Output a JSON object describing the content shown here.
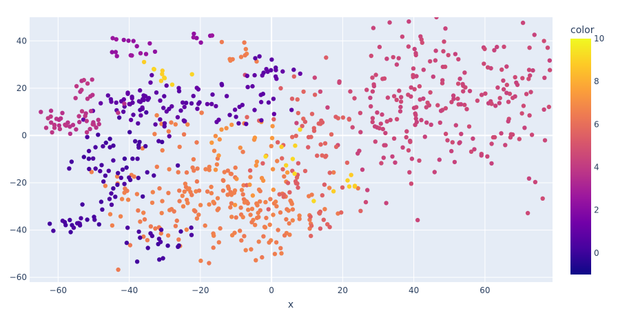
{
  "chart_data": {
    "type": "scatter",
    "title": "",
    "xlabel": "x",
    "ylabel": "",
    "xlim": [
      -68,
      79
    ],
    "ylim": [
      -62,
      50
    ],
    "x_ticks": [
      -60,
      -40,
      -20,
      0,
      20,
      40,
      60
    ],
    "y_ticks": [
      -60,
      -40,
      -20,
      0,
      20,
      40
    ],
    "x_tick_labels": [
      "−60",
      "−40",
      "−20",
      "0",
      "20",
      "40",
      "60"
    ],
    "y_tick_labels": [
      "−60",
      "−40",
      "−20",
      "0",
      "20",
      "40"
    ],
    "grid": true,
    "plot_bgcolor": "#e5ecf6",
    "colorbar": {
      "title": "color",
      "range": [
        -1,
        10
      ],
      "ticks": [
        0,
        2,
        4,
        6,
        8,
        10
      ],
      "colorscale": [
        "#0d0887",
        "#46039f",
        "#7201a8",
        "#9c179e",
        "#bd3786",
        "#d8576b",
        "#ed7953",
        "#fb9f3a",
        "#fdca26",
        "#f0f921"
      ]
    },
    "clusters": [
      {
        "color_value": 4.5,
        "cx": 52,
        "cy": 18,
        "rx": 17,
        "ry": 18,
        "n": 230
      },
      {
        "color_value": 4.5,
        "cx": 30,
        "cy": 3,
        "rx": 6,
        "ry": 13,
        "n": 25
      },
      {
        "color_value": 6.5,
        "cx": -18,
        "cy": -27,
        "rx": 14,
        "ry": 11,
        "n": 160
      },
      {
        "color_value": 6.5,
        "cx": 1,
        "cy": -35,
        "rx": 6,
        "ry": 8,
        "n": 45
      },
      {
        "color_value": 6.5,
        "cx": -25,
        "cy": 0,
        "rx": 6,
        "ry": 5,
        "n": 15
      },
      {
        "color_value": 6.5,
        "cx": -8,
        "cy": 34,
        "rx": 3,
        "ry": 3,
        "n": 10
      },
      {
        "color_value": 5.5,
        "cx": 8,
        "cy": -10,
        "rx": 8,
        "ry": 14,
        "n": 45
      },
      {
        "color_value": 5.5,
        "cx": 14,
        "cy": 10,
        "rx": 5,
        "ry": 12,
        "n": 20
      },
      {
        "color_value": 5.5,
        "cx": 15,
        "cy": -37,
        "rx": 3,
        "ry": 3,
        "n": 12
      },
      {
        "color_value": 7.2,
        "cx": -6,
        "cy": -8,
        "rx": 6,
        "ry": 12,
        "n": 25
      },
      {
        "color_value": 0.9,
        "cx": -30,
        "cy": 12,
        "rx": 7,
        "ry": 6,
        "n": 45
      },
      {
        "color_value": 0.9,
        "cx": -10,
        "cy": 15,
        "rx": 7,
        "ry": 6,
        "n": 30
      },
      {
        "color_value": 0.9,
        "cx": -41,
        "cy": 13,
        "rx": 4,
        "ry": 3,
        "n": 20
      },
      {
        "color_value": 0.9,
        "cx": -2,
        "cy": 27,
        "rx": 4,
        "ry": 4,
        "n": 15
      },
      {
        "color_value": 0.3,
        "cx": -45,
        "cy": -15,
        "rx": 6,
        "ry": 8,
        "n": 40
      },
      {
        "color_value": 0.3,
        "cx": -55,
        "cy": -37,
        "rx": 4,
        "ry": 3,
        "n": 20
      },
      {
        "color_value": 0.3,
        "cx": -33,
        "cy": -45,
        "rx": 5,
        "ry": 4,
        "n": 20
      },
      {
        "color_value": 0.3,
        "cx": -38,
        "cy": -8,
        "rx": 4,
        "ry": 7,
        "n": 15
      },
      {
        "color_value": 3.8,
        "cx": -56,
        "cy": 6,
        "rx": 5,
        "ry": 4,
        "n": 40
      },
      {
        "color_value": 3.8,
        "cx": -52,
        "cy": 20,
        "rx": 2,
        "ry": 3,
        "n": 10
      },
      {
        "color_value": 2.5,
        "cx": -39,
        "cy": 37,
        "rx": 3,
        "ry": 3,
        "n": 15
      },
      {
        "color_value": 2.5,
        "cx": -21,
        "cy": 42,
        "rx": 2,
        "ry": 1,
        "n": 6
      },
      {
        "color_value": 9.0,
        "cx": -29,
        "cy": 28,
        "rx": 3,
        "ry": 4,
        "n": 10
      },
      {
        "color_value": 9.0,
        "cx": 22,
        "cy": -20,
        "rx": 2,
        "ry": 3,
        "n": 6
      },
      {
        "color_value": 9.0,
        "cx": 5,
        "cy": -10,
        "rx": 4,
        "ry": 8,
        "n": 8
      }
    ],
    "seed": 20240611
  }
}
